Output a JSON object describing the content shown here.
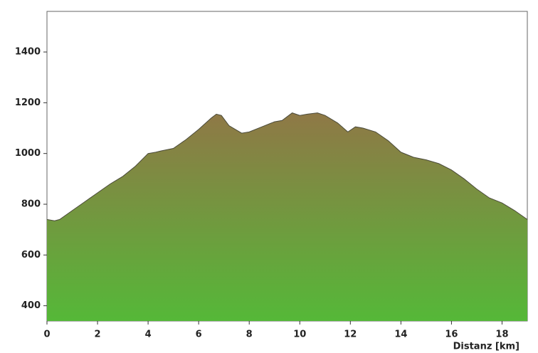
{
  "chart_data": {
    "type": "area",
    "x_label": "Distanz [km]",
    "x": [
      0,
      0.3,
      0.5,
      1,
      1.5,
      2,
      2.5,
      3,
      3.5,
      4,
      4.3,
      4.5,
      5,
      5.5,
      6,
      6.5,
      6.7,
      6.9,
      7.2,
      7.7,
      8,
      8.5,
      9,
      9.3,
      9.7,
      10,
      10.3,
      10.7,
      11,
      11.5,
      11.9,
      12.2,
      12.5,
      13,
      13.5,
      14,
      14.5,
      15,
      15.5,
      16,
      16.5,
      17,
      17.5,
      18,
      18.5,
      19
    ],
    "values": [
      740,
      735,
      740,
      775,
      810,
      845,
      880,
      910,
      950,
      1000,
      1005,
      1010,
      1020,
      1055,
      1095,
      1140,
      1155,
      1150,
      1110,
      1080,
      1085,
      1105,
      1125,
      1130,
      1160,
      1150,
      1155,
      1160,
      1150,
      1120,
      1085,
      1105,
      1100,
      1085,
      1050,
      1005,
      985,
      975,
      960,
      935,
      900,
      860,
      825,
      805,
      775,
      740
    ],
    "gradient": [
      "#8f7846",
      "#55b838"
    ],
    "line_color": "#4a4a3a",
    "xlim": [
      0,
      19
    ],
    "xticks": [
      0,
      2,
      4,
      6,
      8,
      10,
      12,
      14,
      16,
      18
    ],
    "ylim": [
      340,
      1560
    ],
    "yticks": [
      400,
      600,
      800,
      1000,
      1200,
      1400
    ]
  }
}
